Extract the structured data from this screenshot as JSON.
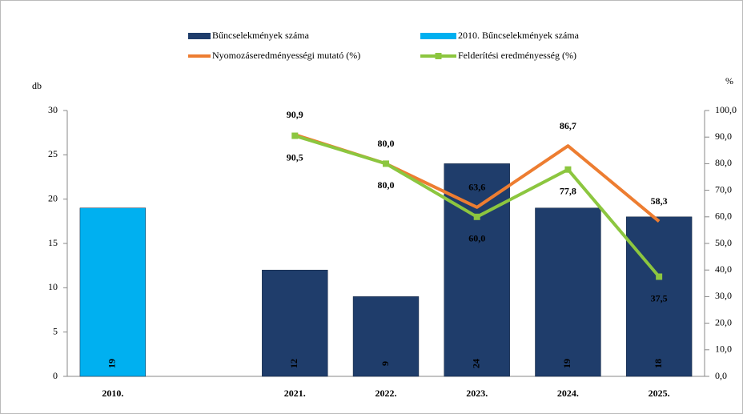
{
  "chart_data": {
    "type": "bar",
    "categories": [
      "2010.",
      null,
      "2021.",
      "2022.",
      "2023.",
      "2024.",
      "2025."
    ],
    "ylabel": "db",
    "y2label": "%",
    "ylim": [
      0,
      30
    ],
    "yticks": [
      0,
      5,
      10,
      15,
      20,
      25,
      30
    ],
    "y2lim": [
      0,
      100
    ],
    "y2ticks": [
      {
        "value": 0,
        "label": "0,0"
      },
      {
        "value": 10,
        "label": "10,0"
      },
      {
        "value": 20,
        "label": "20,0"
      },
      {
        "value": 30,
        "label": "30,0"
      },
      {
        "value": 40,
        "label": "40,0"
      },
      {
        "value": 50,
        "label": "50,0"
      },
      {
        "value": 60,
        "label": "60,0"
      },
      {
        "value": 70,
        "label": "70,0"
      },
      {
        "value": 80,
        "label": "80,0"
      },
      {
        "value": 90,
        "label": "90,0"
      },
      {
        "value": 100,
        "label": "100,0"
      }
    ],
    "series": [
      {
        "name": "Bűncselekmények száma",
        "type": "bar",
        "color": "#1f3d6b",
        "label_color": "#ffffff",
        "values": [
          null,
          null,
          12,
          9,
          24,
          19,
          18
        ]
      },
      {
        "name": "2010. Bűncselekmények száma",
        "type": "bar",
        "color": "#00b0f0",
        "label_color": "#1f3d6b",
        "values": [
          19,
          null,
          null,
          null,
          null,
          null,
          null
        ]
      },
      {
        "name": "Nyomozáseredményességi mutató (%)",
        "type": "line",
        "axis": "y2",
        "color": "#ed7d31",
        "label_color": "#000000",
        "values": [
          null,
          null,
          90.9,
          80.0,
          63.6,
          86.7,
          58.3
        ],
        "value_labels": [
          null,
          null,
          "90,9",
          "80,0",
          "63,6",
          "86,7",
          "58,3"
        ]
      },
      {
        "name": "Felderítési eredményesség (%)",
        "type": "line",
        "axis": "y2",
        "color": "#8cc63f",
        "marker": "square",
        "label_colors": [
          null,
          null,
          "#006400",
          "#006400",
          "#006400",
          "#33cc33",
          "#33cc33"
        ],
        "values": [
          null,
          null,
          90.5,
          80.0,
          60.0,
          77.8,
          37.5
        ],
        "value_labels": [
          null,
          null,
          "90,5",
          "80,0",
          "60,0",
          "77,8",
          "37,5"
        ]
      }
    ]
  }
}
